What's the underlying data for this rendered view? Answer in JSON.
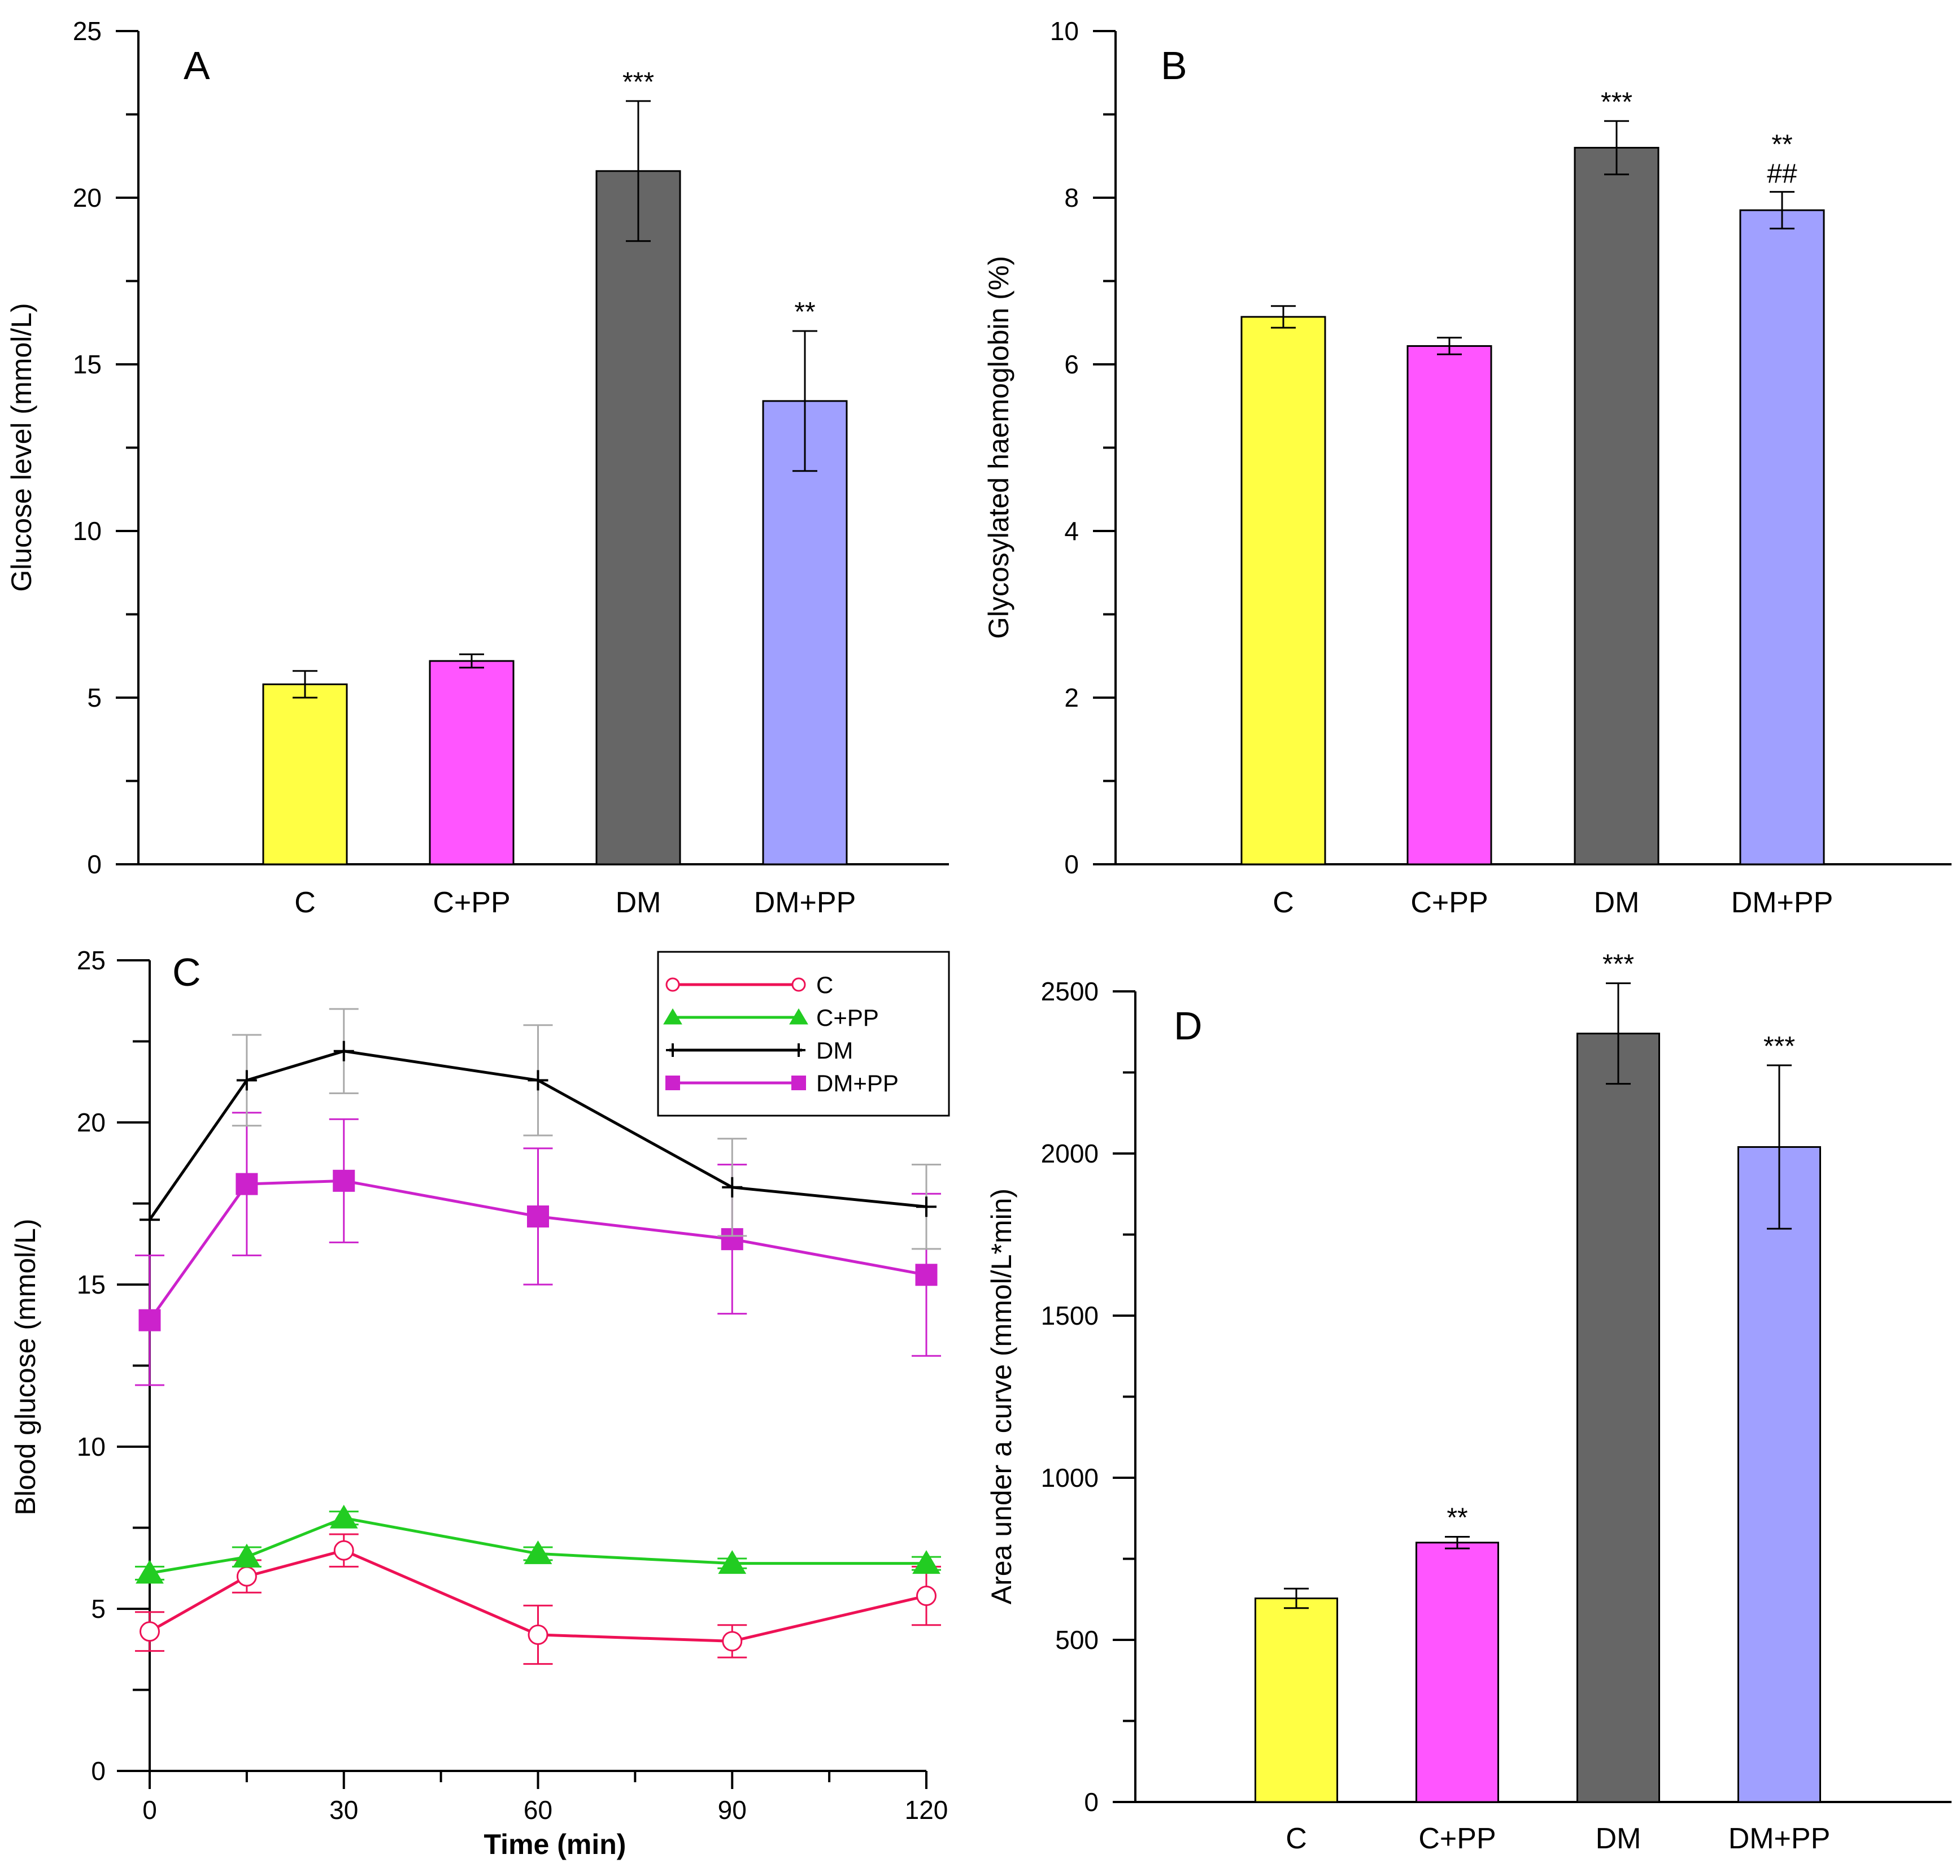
{
  "chart_data": [
    {
      "panel": "A",
      "type": "bar",
      "categories": [
        "C",
        "C+PP",
        "DM",
        "DM+PP"
      ],
      "values": [
        5.4,
        6.1,
        20.8,
        13.9
      ],
      "errors": [
        0.4,
        0.2,
        2.1,
        2.1
      ],
      "significance": [
        "",
        "",
        "***",
        "**"
      ],
      "colors": [
        "#ffff44",
        "#ff55ff",
        "#666666",
        "#a0a0ff"
      ],
      "ylabel": "Glucose level (mmol/L)",
      "ylim": [
        0,
        25
      ],
      "yticks": [
        0,
        5,
        10,
        15,
        20,
        25
      ],
      "ytick_labels": [
        "0",
        "5",
        "10",
        "15",
        "20",
        "25"
      ]
    },
    {
      "panel": "B",
      "type": "bar",
      "categories": [
        "C",
        "C+PP",
        "DM",
        "DM+PP"
      ],
      "values": [
        6.57,
        6.22,
        8.6,
        7.85
      ],
      "errors": [
        0.13,
        0.1,
        0.32,
        0.22
      ],
      "significance": [
        "",
        "",
        "***",
        "**"
      ],
      "significance2": [
        "",
        "",
        "",
        "##"
      ],
      "colors": [
        "#ffff44",
        "#ff55ff",
        "#666666",
        "#a0a0ff"
      ],
      "ylabel": "Glycosylated haemoglobin (%)",
      "ylim": [
        0,
        10
      ],
      "yticks": [
        0,
        2,
        4,
        6,
        8,
        10
      ],
      "ytick_labels": [
        "0",
        "2",
        "4",
        "6",
        "8",
        "10"
      ]
    },
    {
      "panel": "C",
      "type": "line",
      "x": [
        0,
        15,
        30,
        60,
        90,
        120
      ],
      "xticks": [
        0,
        30,
        60,
        90,
        120
      ],
      "xtick_labels": [
        "0",
        "30",
        "60",
        "90",
        "120"
      ],
      "xlabel": "Time (min)",
      "ylabel": "Blood glucose (mmol/L)",
      "xlim": [
        0,
        120
      ],
      "ylim": [
        0,
        25
      ],
      "yticks": [
        0,
        5,
        10,
        15,
        20,
        25
      ],
      "ytick_labels": [
        "0",
        "5",
        "10",
        "15",
        "20",
        "25"
      ],
      "legend_position": "top-right",
      "series": [
        {
          "name": "C",
          "color": "#ee1155",
          "marker": "open-circle",
          "values": [
            4.3,
            6.0,
            6.8,
            4.2,
            4.0,
            5.4
          ],
          "errors": [
            0.6,
            0.5,
            0.5,
            0.9,
            0.5,
            0.9
          ]
        },
        {
          "name": "C+PP",
          "color": "#22cc22",
          "marker": "triangle",
          "values": [
            6.1,
            6.6,
            7.8,
            6.7,
            6.4,
            6.4
          ],
          "errors": [
            0.2,
            0.3,
            0.2,
            0.2,
            0.15,
            0.2
          ]
        },
        {
          "name": "DM",
          "color": "#000000",
          "errorColor": "#aaaaaa",
          "marker": "plus",
          "values": [
            17.0,
            21.3,
            22.2,
            21.3,
            18.0,
            17.4
          ],
          "errors": [
            0.0,
            1.4,
            1.3,
            1.7,
            1.5,
            1.3
          ]
        },
        {
          "name": "DM+PP",
          "color": "#cc22cc",
          "marker": "square",
          "values": [
            13.9,
            18.1,
            18.2,
            17.1,
            16.4,
            15.3
          ],
          "errors": [
            2.0,
            2.2,
            1.9,
            2.1,
            2.3,
            2.5
          ]
        }
      ]
    },
    {
      "panel": "D",
      "type": "bar",
      "categories": [
        "C",
        "C+PP",
        "DM",
        "DM+PP"
      ],
      "values": [
        628,
        800,
        2370,
        2020
      ],
      "errors": [
        30,
        18,
        155,
        252
      ],
      "significance": [
        "",
        "**",
        "***",
        "***"
      ],
      "colors": [
        "#ffff44",
        "#ff55ff",
        "#666666",
        "#a0a0ff"
      ],
      "ylabel": "Area under a curve (mmol/L*min)",
      "ylim": [
        0,
        2500
      ],
      "yticks": [
        0,
        500,
        1000,
        1500,
        2000,
        2500
      ],
      "ytick_labels": [
        "0",
        "500",
        "1000",
        "1500",
        "2000",
        "2500"
      ]
    }
  ]
}
